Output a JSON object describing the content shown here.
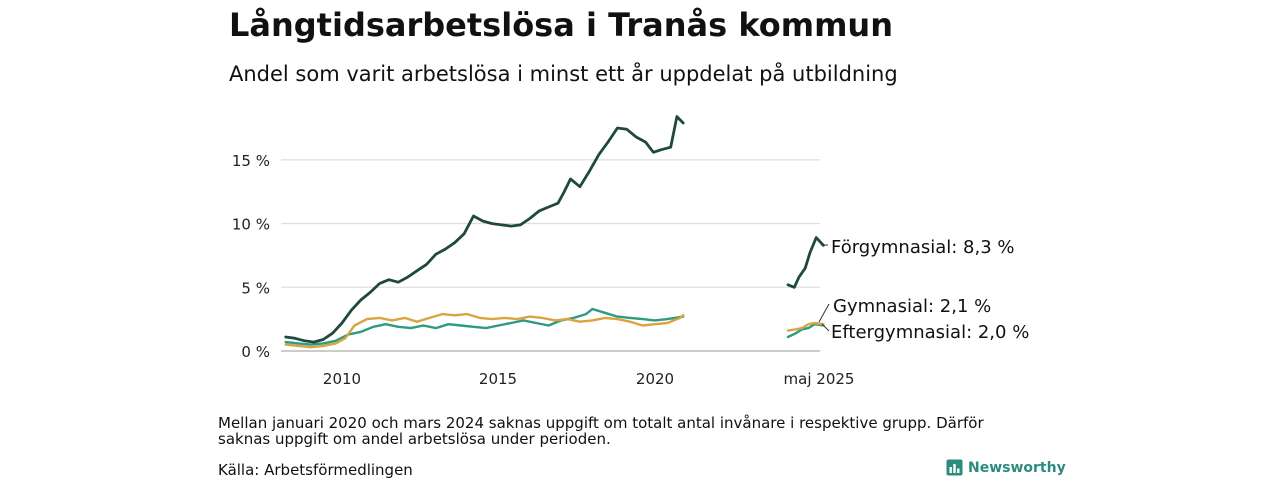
{
  "title": "Långtidsarbetslösa i Tranås kommun",
  "subtitle": "Andel som varit arbetslösa i minst ett år uppdelat på utbildning",
  "note": "Mellan januari 2020 och mars 2024 saknas uppgift om totalt antal invånare i respektive grupp. Därför saknas uppgift om andel arbetslösa under perioden.",
  "source": "Källa: Arbetsförmedlingen",
  "brand": {
    "name": "Newsworthy",
    "icon": "bar-chart-icon"
  },
  "chart_data": {
    "type": "line",
    "x_tick_labels": [
      "2010",
      "2015",
      "2020",
      "maj 2025"
    ],
    "y_tick_labels": [
      "0 %",
      "5 %",
      "10 %",
      "15 %"
    ],
    "y_ticks": [
      0,
      5,
      10,
      15
    ],
    "ylim": [
      0,
      19
    ],
    "grid": true,
    "gap_note": "data missing Jan 2020 – Mar 2024",
    "series": [
      {
        "name": "Förgymnasial",
        "end_label": "Förgymnasial: 8,3 %",
        "color": "#1e4a3d",
        "segments": [
          [
            [
              2008.2,
              1.1
            ],
            [
              2008.5,
              1.0
            ],
            [
              2008.8,
              0.8
            ],
            [
              2009.1,
              0.7
            ],
            [
              2009.4,
              0.9
            ],
            [
              2009.7,
              1.4
            ],
            [
              2010.0,
              2.2
            ],
            [
              2010.3,
              3.2
            ],
            [
              2010.6,
              4.0
            ],
            [
              2010.9,
              4.6
            ],
            [
              2011.2,
              5.3
            ],
            [
              2011.5,
              5.6
            ],
            [
              2011.8,
              5.4
            ],
            [
              2012.1,
              5.8
            ],
            [
              2012.4,
              6.3
            ],
            [
              2012.7,
              6.8
            ],
            [
              2013.0,
              7.6
            ],
            [
              2013.3,
              8.0
            ],
            [
              2013.6,
              8.5
            ],
            [
              2013.9,
              9.2
            ],
            [
              2014.2,
              10.6
            ],
            [
              2014.5,
              10.2
            ],
            [
              2014.8,
              10.0
            ],
            [
              2015.1,
              9.9
            ],
            [
              2015.4,
              9.8
            ],
            [
              2015.7,
              9.9
            ],
            [
              2016.0,
              10.4
            ],
            [
              2016.3,
              11.0
            ],
            [
              2016.6,
              11.3
            ],
            [
              2016.9,
              11.6
            ],
            [
              2017.1,
              12.5
            ],
            [
              2017.3,
              13.5
            ],
            [
              2017.6,
              12.9
            ],
            [
              2017.9,
              14.1
            ],
            [
              2018.2,
              15.4
            ],
            [
              2018.5,
              16.4
            ],
            [
              2018.8,
              17.5
            ],
            [
              2019.1,
              17.4
            ],
            [
              2019.4,
              16.8
            ],
            [
              2019.7,
              16.4
            ],
            [
              2019.95,
              15.6
            ],
            [
              2020.2,
              15.8
            ],
            [
              2020.5,
              16.0
            ],
            [
              2020.7,
              18.4
            ],
            [
              2020.9,
              17.9
            ]
          ],
          [
            [
              2024.25,
              5.2
            ],
            [
              2024.45,
              5.0
            ],
            [
              2024.6,
              5.8
            ],
            [
              2024.8,
              6.5
            ],
            [
              2024.95,
              7.7
            ],
            [
              2025.15,
              8.9
            ],
            [
              2025.38,
              8.3
            ]
          ]
        ]
      },
      {
        "name": "Gymnasial",
        "end_label": "Gymnasial: 2,1 %",
        "color": "#d9a441",
        "segments": [
          [
            [
              2008.2,
              0.5
            ],
            [
              2008.6,
              0.4
            ],
            [
              2009.0,
              0.3
            ],
            [
              2009.4,
              0.4
            ],
            [
              2009.8,
              0.6
            ],
            [
              2010.1,
              1.0
            ],
            [
              2010.4,
              2.0
            ],
            [
              2010.8,
              2.5
            ],
            [
              2011.2,
              2.6
            ],
            [
              2011.6,
              2.4
            ],
            [
              2012.0,
              2.6
            ],
            [
              2012.4,
              2.3
            ],
            [
              2012.8,
              2.6
            ],
            [
              2013.2,
              2.9
            ],
            [
              2013.6,
              2.8
            ],
            [
              2014.0,
              2.9
            ],
            [
              2014.4,
              2.6
            ],
            [
              2014.8,
              2.5
            ],
            [
              2015.2,
              2.6
            ],
            [
              2015.6,
              2.5
            ],
            [
              2016.0,
              2.7
            ],
            [
              2016.4,
              2.6
            ],
            [
              2016.8,
              2.4
            ],
            [
              2017.2,
              2.5
            ],
            [
              2017.6,
              2.3
            ],
            [
              2018.0,
              2.4
            ],
            [
              2018.4,
              2.6
            ],
            [
              2018.8,
              2.5
            ],
            [
              2019.2,
              2.3
            ],
            [
              2019.6,
              2.0
            ],
            [
              2020.0,
              2.1
            ],
            [
              2020.4,
              2.2
            ],
            [
              2020.8,
              2.6
            ],
            [
              2020.9,
              2.8
            ]
          ],
          [
            [
              2024.25,
              1.6
            ],
            [
              2024.5,
              1.7
            ],
            [
              2024.7,
              1.8
            ],
            [
              2024.9,
              2.1
            ],
            [
              2025.1,
              2.2
            ],
            [
              2025.38,
              2.1
            ]
          ]
        ]
      },
      {
        "name": "Eftergymnasial",
        "end_label": "Eftergymnasial: 2,0 %",
        "color": "#2f9a82",
        "segments": [
          [
            [
              2008.2,
              0.7
            ],
            [
              2008.6,
              0.6
            ],
            [
              2009.0,
              0.5
            ],
            [
              2009.4,
              0.6
            ],
            [
              2009.8,
              0.8
            ],
            [
              2010.2,
              1.3
            ],
            [
              2010.6,
              1.5
            ],
            [
              2011.0,
              1.9
            ],
            [
              2011.4,
              2.1
            ],
            [
              2011.8,
              1.9
            ],
            [
              2012.2,
              1.8
            ],
            [
              2012.6,
              2.0
            ],
            [
              2013.0,
              1.8
            ],
            [
              2013.4,
              2.1
            ],
            [
              2013.8,
              2.0
            ],
            [
              2014.2,
              1.9
            ],
            [
              2014.6,
              1.8
            ],
            [
              2015.0,
              2.0
            ],
            [
              2015.4,
              2.2
            ],
            [
              2015.8,
              2.4
            ],
            [
              2016.2,
              2.2
            ],
            [
              2016.6,
              2.0
            ],
            [
              2017.0,
              2.4
            ],
            [
              2017.4,
              2.6
            ],
            [
              2017.8,
              2.9
            ],
            [
              2018.0,
              3.3
            ],
            [
              2018.4,
              3.0
            ],
            [
              2018.8,
              2.7
            ],
            [
              2019.2,
              2.6
            ],
            [
              2019.6,
              2.5
            ],
            [
              2020.0,
              2.4
            ],
            [
              2020.4,
              2.5
            ],
            [
              2020.9,
              2.7
            ]
          ],
          [
            [
              2024.25,
              1.1
            ],
            [
              2024.5,
              1.4
            ],
            [
              2024.7,
              1.7
            ],
            [
              2024.9,
              1.8
            ],
            [
              2025.1,
              2.1
            ],
            [
              2025.38,
              2.0
            ]
          ]
        ]
      }
    ]
  }
}
